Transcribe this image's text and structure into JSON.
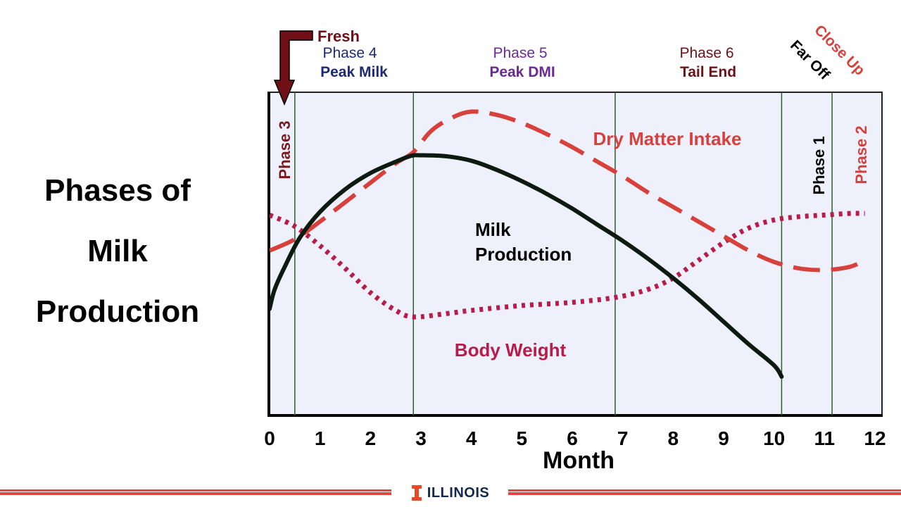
{
  "side_title": [
    "Phases of",
    "Milk",
    "Production"
  ],
  "footer": {
    "brand": "ILLINOIS"
  },
  "colors": {
    "plot_bg": "#eef1fb",
    "milk": "#0d1a10",
    "dmi": "#d8413b",
    "body_weight": "#b81d4a",
    "phase_line": "#2f5e2a",
    "fresh": "#6e1016",
    "phase4": "#1c2a7a",
    "phase5": "#6a2a94",
    "phase6": "#6e1016",
    "close_up": "#d8413b",
    "footer_red": "#e0473e",
    "brand_blue": "#13294b"
  },
  "chart_data": {
    "type": "line",
    "xlabel": "Month",
    "xlim": [
      0,
      12
    ],
    "ylim": [
      0,
      100
    ],
    "x_ticks": [
      "0",
      "1",
      "2",
      "3",
      "4",
      "5",
      "6",
      "7",
      "8",
      "9",
      "10",
      "11",
      "12"
    ],
    "phase_boundaries": [
      0.5,
      2.85,
      6.85,
      10.15,
      11.15
    ],
    "series": [
      {
        "key": "milk",
        "name": "Milk Production",
        "label": [
          "Milk",
          "Production"
        ],
        "style": "solid",
        "x": [
          0,
          0.1,
          0.3,
          0.6,
          1.0,
          1.5,
          2.0,
          2.5,
          2.8,
          3.0,
          3.5,
          4.0,
          4.5,
          5.0,
          5.5,
          6.0,
          6.5,
          7.0,
          7.5,
          8.0,
          8.5,
          9.0,
          9.5,
          10.0,
          10.15
        ],
        "y": [
          33,
          39,
          46,
          55,
          63,
          70,
          75,
          78.5,
          80.3,
          80.5,
          80.2,
          78.8,
          76,
          72.5,
          68.5,
          64,
          59,
          54,
          48.5,
          42.5,
          36,
          29,
          22,
          15.5,
          12
        ]
      },
      {
        "key": "dmi",
        "name": "Dry Matter Intake",
        "label": [
          "Dry Matter Intake"
        ],
        "style": "dashed",
        "x": [
          0,
          0.5,
          1.0,
          1.5,
          2.0,
          2.5,
          2.85,
          3.2,
          3.6,
          4.0,
          4.5,
          5.0,
          5.5,
          6.0,
          6.5,
          7.0,
          7.5,
          8.0,
          8.5,
          9.0,
          9.5,
          10.0,
          10.5,
          11.0,
          11.5,
          11.8
        ],
        "y": [
          51,
          54.5,
          60,
          66,
          72,
          78,
          81.5,
          88,
          92,
          94,
          93,
          90.5,
          87,
          83,
          78.5,
          74,
          69,
          64.5,
          60,
          55.5,
          51,
          47.5,
          45.5,
          45,
          46,
          48
        ]
      },
      {
        "key": "body_weight",
        "name": "Body Weight",
        "label": [
          "Body Weight"
        ],
        "style": "dotted",
        "x": [
          0,
          0.5,
          1.0,
          1.5,
          2.0,
          2.5,
          2.85,
          3.5,
          4.0,
          5.0,
          6.0,
          6.85,
          7.5,
          8.0,
          8.5,
          9.0,
          9.5,
          10.0,
          10.5,
          11.0,
          11.5,
          11.8
        ],
        "y": [
          62,
          58.5,
          52.5,
          45.5,
          38,
          32.5,
          30.5,
          31.5,
          32.5,
          34,
          35,
          36.5,
          39,
          42.5,
          48,
          53.5,
          58,
          60.5,
          61.5,
          62,
          62.5,
          62.5
        ]
      }
    ],
    "annotations": {
      "fresh": "Fresh",
      "phase4": {
        "name": "Phase 4",
        "sub": "Peak Milk"
      },
      "phase5": {
        "name": "Phase 5",
        "sub": "Peak DMI"
      },
      "phase6": {
        "name": "Phase 6",
        "sub": "Tail End"
      },
      "far_off": "Far Off",
      "close_up": "Close Up",
      "phase3": "Phase 3",
      "phase1": "Phase 1",
      "phase2": "Phase 2"
    }
  }
}
